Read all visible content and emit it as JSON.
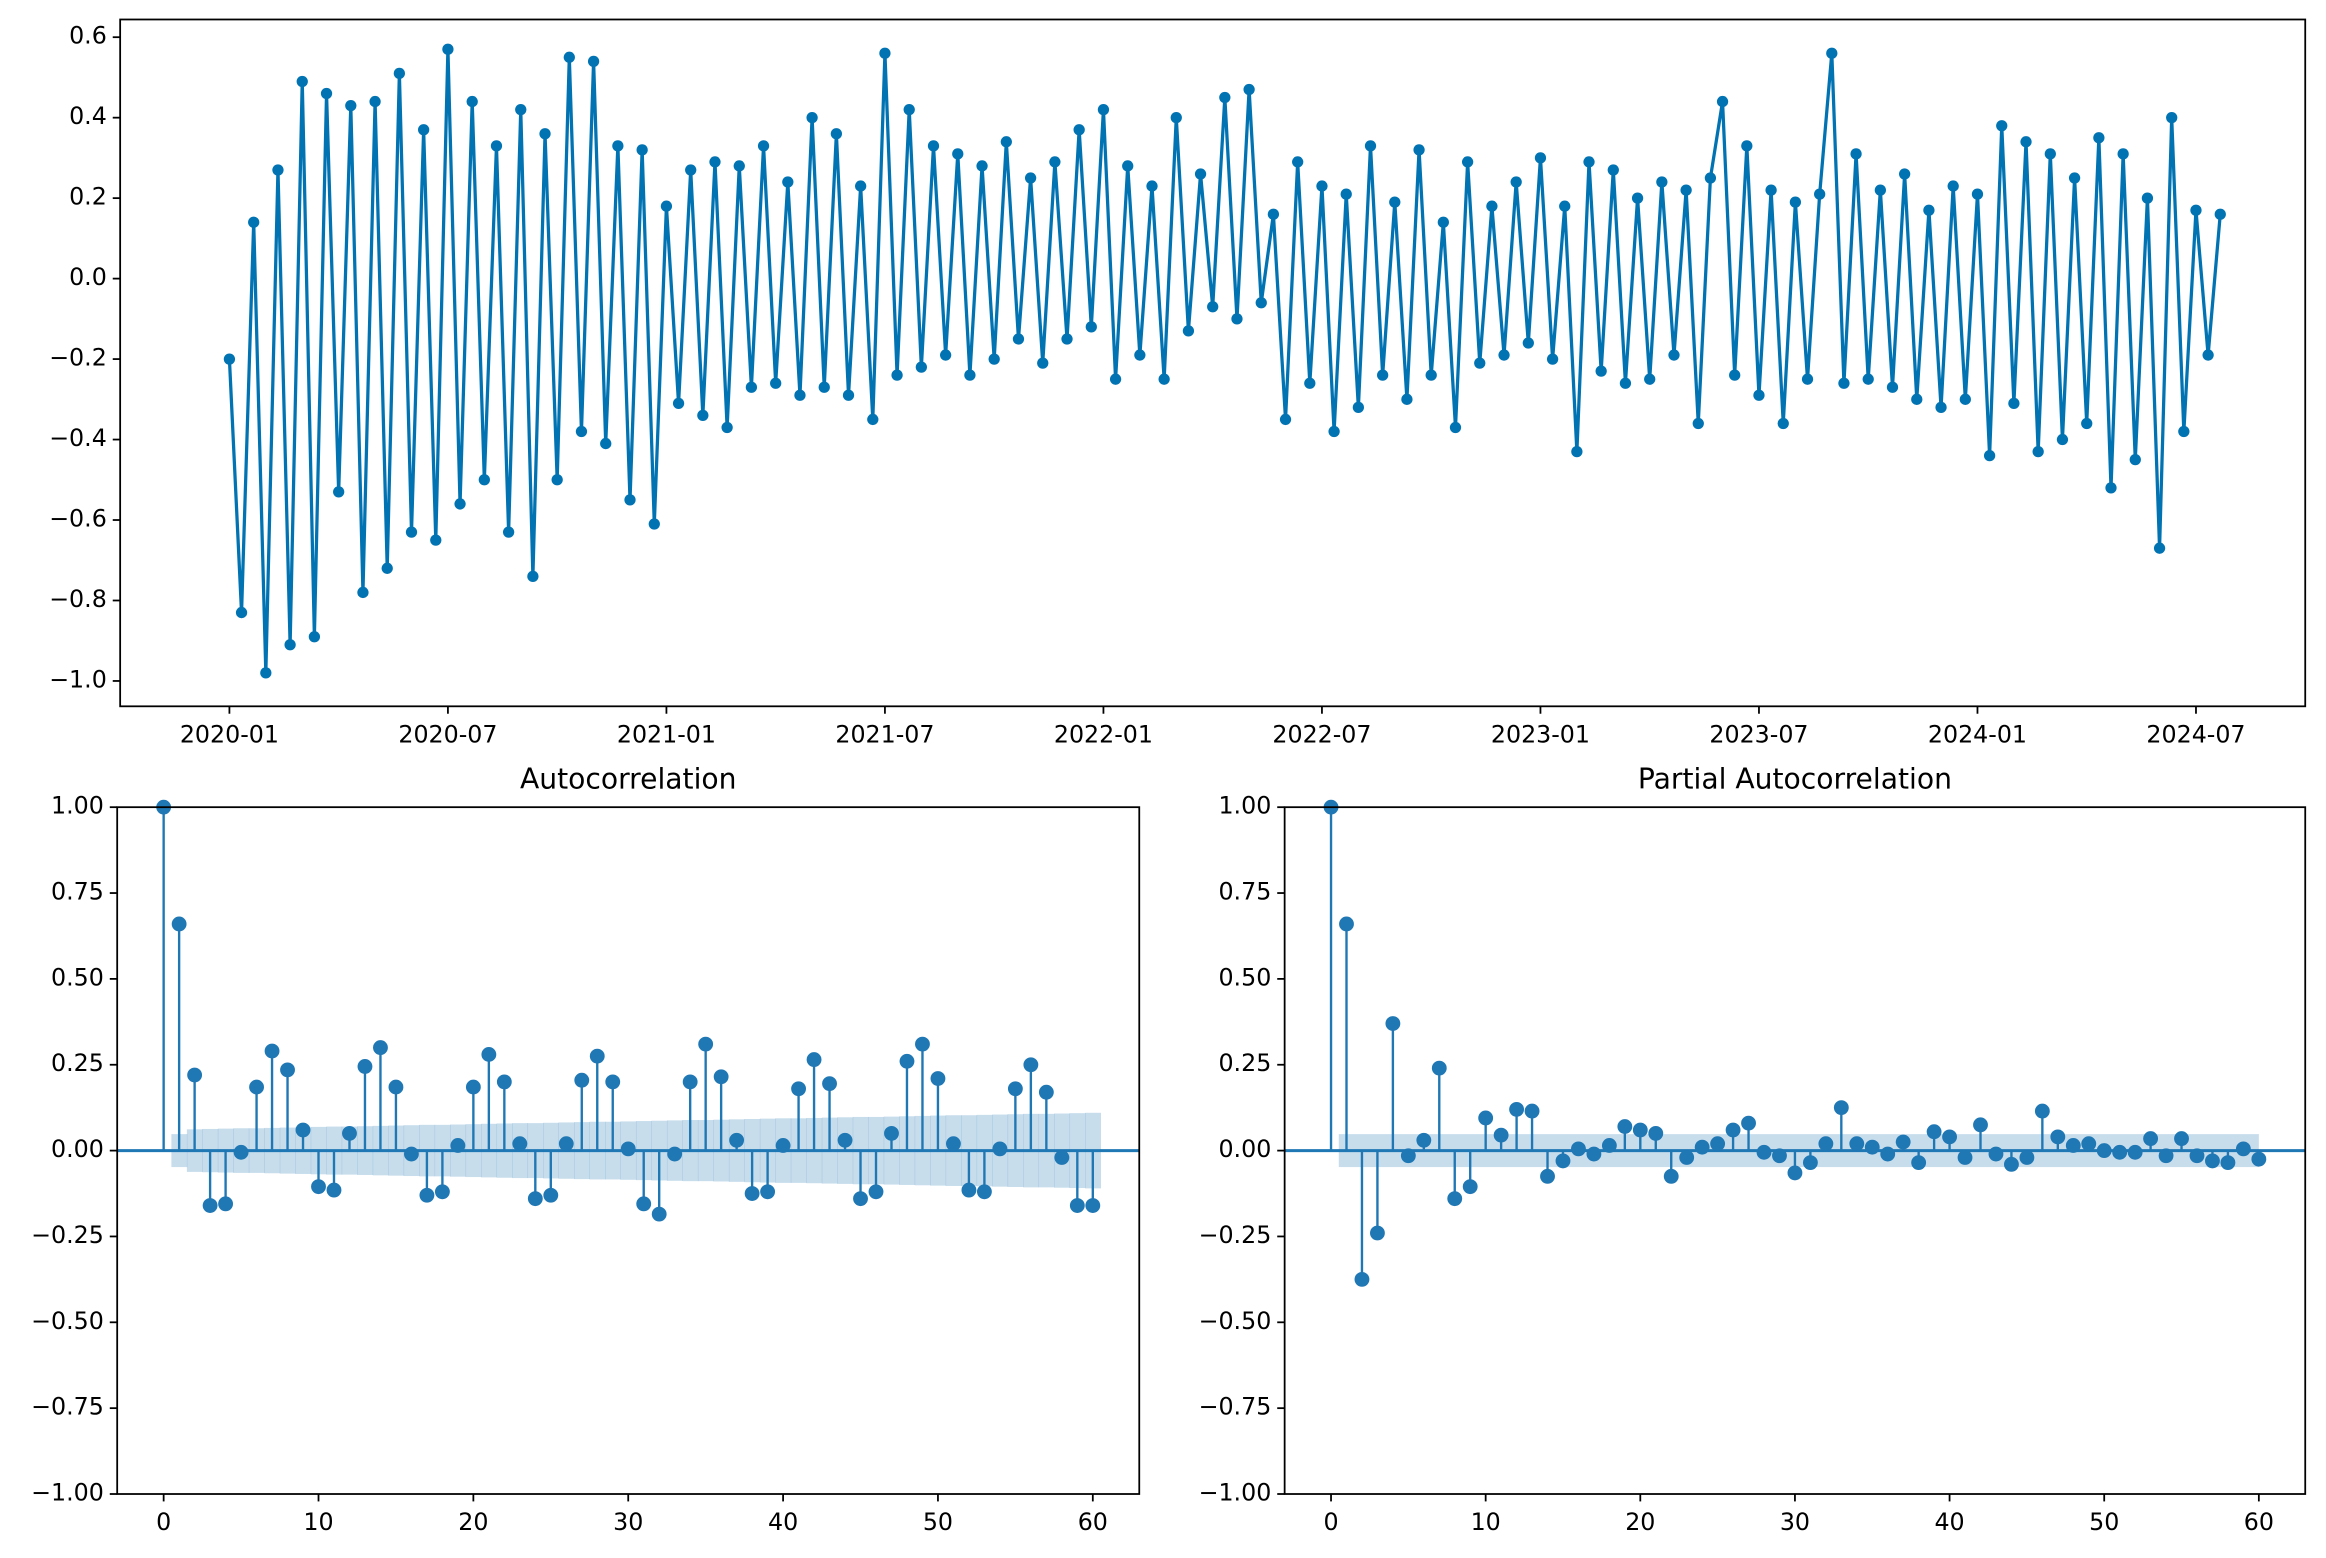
{
  "chart_data": [
    {
      "type": "line",
      "x": [
        "2020-01",
        "2020-01",
        "2020-01",
        "2020-02",
        "2020-02",
        "2020-02",
        "2020-03",
        "2020-03",
        "2020-03",
        "2020-04",
        "2020-04",
        "2020-04",
        "2020-05",
        "2020-05",
        "2020-05",
        "2020-06",
        "2020-06",
        "2020-06",
        "2020-07",
        "2020-07",
        "2020-07",
        "2020-08",
        "2020-08",
        "2020-08",
        "2020-09",
        "2020-09",
        "2020-09",
        "2020-10",
        "2020-10",
        "2020-10",
        "2020-11",
        "2020-11",
        "2020-11",
        "2020-12",
        "2020-12",
        "2020-12",
        "2021-01",
        "2021-01",
        "2021-01",
        "2021-02",
        "2021-02",
        "2021-02",
        "2021-03",
        "2021-03",
        "2021-03",
        "2021-04",
        "2021-04",
        "2021-04",
        "2021-05",
        "2021-05",
        "2021-05",
        "2021-06",
        "2021-06",
        "2021-06",
        "2021-07",
        "2021-07",
        "2021-07",
        "2021-08",
        "2021-08",
        "2021-08",
        "2021-09",
        "2021-09",
        "2021-09",
        "2021-10",
        "2021-10",
        "2021-10",
        "2021-11",
        "2021-11",
        "2021-11",
        "2021-12",
        "2021-12",
        "2021-12",
        "2022-01",
        "2022-01",
        "2022-01",
        "2022-02",
        "2022-02",
        "2022-02",
        "2022-03",
        "2022-03",
        "2022-03",
        "2022-04",
        "2022-04",
        "2022-04",
        "2022-05",
        "2022-05",
        "2022-05",
        "2022-06",
        "2022-06",
        "2022-06",
        "2022-07",
        "2022-07",
        "2022-07",
        "2022-08",
        "2022-08",
        "2022-08",
        "2022-09",
        "2022-09",
        "2022-09",
        "2022-10",
        "2022-10",
        "2022-10",
        "2022-11",
        "2022-11",
        "2022-11",
        "2022-12",
        "2022-12",
        "2022-12",
        "2023-01",
        "2023-01",
        "2023-01",
        "2023-02",
        "2023-02",
        "2023-02",
        "2023-03",
        "2023-03",
        "2023-03",
        "2023-04",
        "2023-04",
        "2023-04",
        "2023-05",
        "2023-05",
        "2023-05",
        "2023-06",
        "2023-06",
        "2023-06",
        "2023-07",
        "2023-07",
        "2023-07",
        "2023-08",
        "2023-08",
        "2023-08",
        "2023-09",
        "2023-09",
        "2023-09",
        "2023-10",
        "2023-10",
        "2023-10",
        "2023-11",
        "2023-11",
        "2023-11",
        "2023-12",
        "2023-12",
        "2023-12",
        "2024-01",
        "2024-01",
        "2024-01",
        "2024-02",
        "2024-02",
        "2024-02",
        "2024-03",
        "2024-03",
        "2024-03",
        "2024-04",
        "2024-04",
        "2024-04",
        "2024-05",
        "2024-05",
        "2024-05",
        "2024-06",
        "2024-06",
        "2024-06",
        "2024-07",
        "2024-07",
        "2024-07"
      ],
      "series": [
        {
          "color": "#0173b2",
          "values": [
            -0.2,
            -0.83,
            0.14,
            -0.98,
            0.27,
            -0.91,
            0.49,
            -0.89,
            0.46,
            -0.53,
            0.43,
            -0.78,
            0.44,
            -0.72,
            0.51,
            -0.63,
            0.37,
            -0.65,
            0.57,
            -0.56,
            0.44,
            -0.5,
            0.33,
            -0.63,
            0.42,
            -0.74,
            0.36,
            -0.5,
            0.55,
            -0.38,
            0.54,
            -0.41,
            0.33,
            -0.55,
            0.32,
            -0.61,
            0.18,
            -0.31,
            0.27,
            -0.34,
            0.29,
            -0.37,
            0.28,
            -0.27,
            0.33,
            -0.26,
            0.24,
            -0.29,
            0.4,
            -0.27,
            0.36,
            -0.29,
            0.23,
            -0.35,
            0.56,
            -0.24,
            0.42,
            -0.22,
            0.33,
            -0.19,
            0.31,
            -0.24,
            0.28,
            -0.2,
            0.34,
            -0.15,
            0.25,
            -0.21,
            0.29,
            -0.15,
            0.37,
            -0.12,
            0.42,
            -0.25,
            0.28,
            -0.19,
            0.23,
            -0.25,
            0.4,
            -0.13,
            0.26,
            -0.07,
            0.45,
            -0.1,
            0.47,
            -0.06,
            0.16,
            -0.35,
            0.29,
            -0.26,
            0.23,
            -0.38,
            0.21,
            -0.32,
            0.33,
            -0.24,
            0.19,
            -0.3,
            0.32,
            -0.24,
            0.14,
            -0.37,
            0.29,
            -0.21,
            0.18,
            -0.19,
            0.24,
            -0.16,
            0.3,
            -0.2,
            0.18,
            -0.43,
            0.29,
            -0.23,
            0.27,
            -0.26,
            0.2,
            -0.25,
            0.24,
            -0.19,
            0.22,
            -0.36,
            0.25,
            0.44,
            -0.24,
            0.33,
            -0.29,
            0.22,
            -0.36,
            0.19,
            -0.25,
            0.21,
            0.56,
            -0.26,
            0.31,
            -0.25,
            0.22,
            -0.27,
            0.26,
            -0.3,
            0.17,
            -0.32,
            0.23,
            -0.3,
            0.21,
            -0.44,
            0.38,
            -0.31,
            0.34,
            -0.43,
            0.31,
            -0.4,
            0.25,
            -0.36,
            0.35,
            -0.52,
            0.31,
            -0.45,
            0.2,
            -0.67,
            0.4,
            -0.38,
            0.17,
            -0.19,
            0.16
          ]
        }
      ],
      "xlim": [
        "2019-10",
        "2024-10"
      ],
      "xticks": [
        "2020-01",
        "2020-07",
        "2021-01",
        "2021-07",
        "2022-01",
        "2022-07",
        "2023-01",
        "2023-07",
        "2024-01",
        "2024-07"
      ],
      "ylim": [
        -1.063,
        0.644
      ],
      "yticks": [
        {
          "value": -1.0,
          "label": "−1.0"
        },
        {
          "value": -0.8,
          "label": "−0.8"
        },
        {
          "value": -0.6,
          "label": "−0.6"
        },
        {
          "value": -0.4,
          "label": "−0.4"
        },
        {
          "value": -0.2,
          "label": "−0.2"
        },
        {
          "value": 0,
          "label": "0.0"
        },
        0.2,
        0.4,
        0.6
      ]
    },
    {
      "type": "stem",
      "title": "Autocorrelation",
      "color": "#1f77b4",
      "x": [
        0,
        1,
        2,
        3,
        4,
        5,
        6,
        7,
        8,
        9,
        10,
        11,
        12,
        13,
        14,
        15,
        16,
        17,
        18,
        19,
        20,
        21,
        22,
        23,
        24,
        25,
        26,
        27,
        28,
        29,
        30,
        31,
        32,
        33,
        34,
        35,
        36,
        37,
        38,
        39,
        40,
        41,
        42,
        43,
        44,
        45,
        46,
        47,
        48,
        49,
        50,
        51,
        52,
        53,
        54,
        55,
        56,
        57,
        58,
        59,
        60
      ],
      "values": [
        1.0,
        0.66,
        0.22,
        -0.16,
        -0.155,
        -0.005,
        0.185,
        0.29,
        0.235,
        0.06,
        -0.105,
        -0.115,
        0.05,
        0.245,
        0.3,
        0.185,
        -0.01,
        -0.13,
        -0.12,
        0.015,
        0.185,
        0.28,
        0.2,
        0.02,
        -0.14,
        -0.13,
        0.02,
        0.205,
        0.275,
        0.2,
        0.005,
        -0.155,
        -0.185,
        -0.01,
        0.2,
        0.31,
        0.215,
        0.03,
        -0.125,
        -0.12,
        0.015,
        0.18,
        0.265,
        0.195,
        0.03,
        -0.14,
        -0.12,
        0.05,
        0.26,
        0.31,
        0.21,
        0.02,
        -0.115,
        -0.12,
        0.005,
        0.18,
        0.25,
        0.17,
        -0.02,
        -0.16,
        -0.16
      ],
      "confidence_band": [
        null,
        0.048,
        0.062,
        0.063,
        0.064,
        0.065,
        0.065,
        0.066,
        0.067,
        0.068,
        0.069,
        0.07,
        0.07,
        0.071,
        0.072,
        0.073,
        0.074,
        0.075,
        0.075,
        0.076,
        0.077,
        0.078,
        0.079,
        0.08,
        0.08,
        0.081,
        0.082,
        0.083,
        0.084,
        0.084,
        0.085,
        0.086,
        0.087,
        0.088,
        0.089,
        0.089,
        0.09,
        0.091,
        0.092,
        0.093,
        0.094,
        0.094,
        0.095,
        0.096,
        0.097,
        0.098,
        0.098,
        0.099,
        0.1,
        0.101,
        0.102,
        0.103,
        0.103,
        0.104,
        0.105,
        0.106,
        0.107,
        0.107,
        0.108,
        0.109,
        0.11
      ],
      "xlim": [
        -3,
        63
      ],
      "xticks": [
        0,
        10,
        20,
        30,
        40,
        50,
        60
      ],
      "ylim": [
        -1,
        1
      ],
      "yticks": [
        {
          "value": -1,
          "label": "−1.00"
        },
        {
          "value": -0.75,
          "label": "−0.75"
        },
        {
          "value": -0.5,
          "label": "−0.50"
        },
        {
          "value": -0.25,
          "label": "−0.25"
        },
        {
          "value": 0,
          "label": "0.00"
        },
        {
          "value": 0.25,
          "label": "0.25"
        },
        {
          "value": 0.5,
          "label": "0.50"
        },
        {
          "value": 0.75,
          "label": "0.75"
        },
        {
          "value": 1,
          "label": "1.00"
        }
      ]
    },
    {
      "type": "stem",
      "title": "Partial Autocorrelation",
      "color": "#1f77b4",
      "x": [
        0,
        1,
        2,
        3,
        4,
        5,
        6,
        7,
        8,
        9,
        10,
        11,
        12,
        13,
        14,
        15,
        16,
        17,
        18,
        19,
        20,
        21,
        22,
        23,
        24,
        25,
        26,
        27,
        28,
        29,
        30,
        31,
        32,
        33,
        34,
        35,
        36,
        37,
        38,
        39,
        40,
        41,
        42,
        43,
        44,
        45,
        46,
        47,
        48,
        49,
        50,
        51,
        52,
        53,
        54,
        55,
        56,
        57,
        58,
        59,
        60
      ],
      "values": [
        1.0,
        0.66,
        -0.375,
        -0.24,
        0.37,
        -0.015,
        0.03,
        0.24,
        -0.14,
        -0.105,
        0.095,
        0.045,
        0.12,
        0.115,
        -0.075,
        -0.03,
        0.005,
        -0.01,
        0.015,
        0.07,
        0.06,
        0.05,
        -0.075,
        -0.02,
        0.01,
        0.02,
        0.06,
        0.08,
        -0.005,
        -0.015,
        -0.065,
        -0.035,
        0.02,
        0.125,
        0.02,
        0.01,
        -0.01,
        0.025,
        -0.035,
        0.055,
        0.04,
        -0.02,
        0.075,
        -0.01,
        -0.04,
        -0.02,
        0.115,
        0.04,
        0.015,
        0.02,
        0,
        -0.005,
        -0.005,
        0.035,
        -0.015,
        0.035,
        -0.015,
        -0.03,
        -0.035,
        0.005,
        -0.025
      ],
      "confidence_band": 0.048,
      "xlim": [
        -3,
        63
      ],
      "xticks": [
        0,
        10,
        20,
        30,
        40,
        50,
        60
      ],
      "ylim": [
        -1,
        1
      ],
      "yticks": [
        {
          "value": -1,
          "label": "−1.00"
        },
        {
          "value": -0.75,
          "label": "−0.75"
        },
        {
          "value": -0.5,
          "label": "−0.50"
        },
        {
          "value": -0.25,
          "label": "−0.25"
        },
        {
          "value": 0,
          "label": "0.00"
        },
        {
          "value": 0.25,
          "label": "0.25"
        },
        {
          "value": 0.5,
          "label": "0.50"
        },
        {
          "value": 0.75,
          "label": "0.75"
        },
        {
          "value": 1,
          "label": "1.00"
        }
      ]
    }
  ]
}
